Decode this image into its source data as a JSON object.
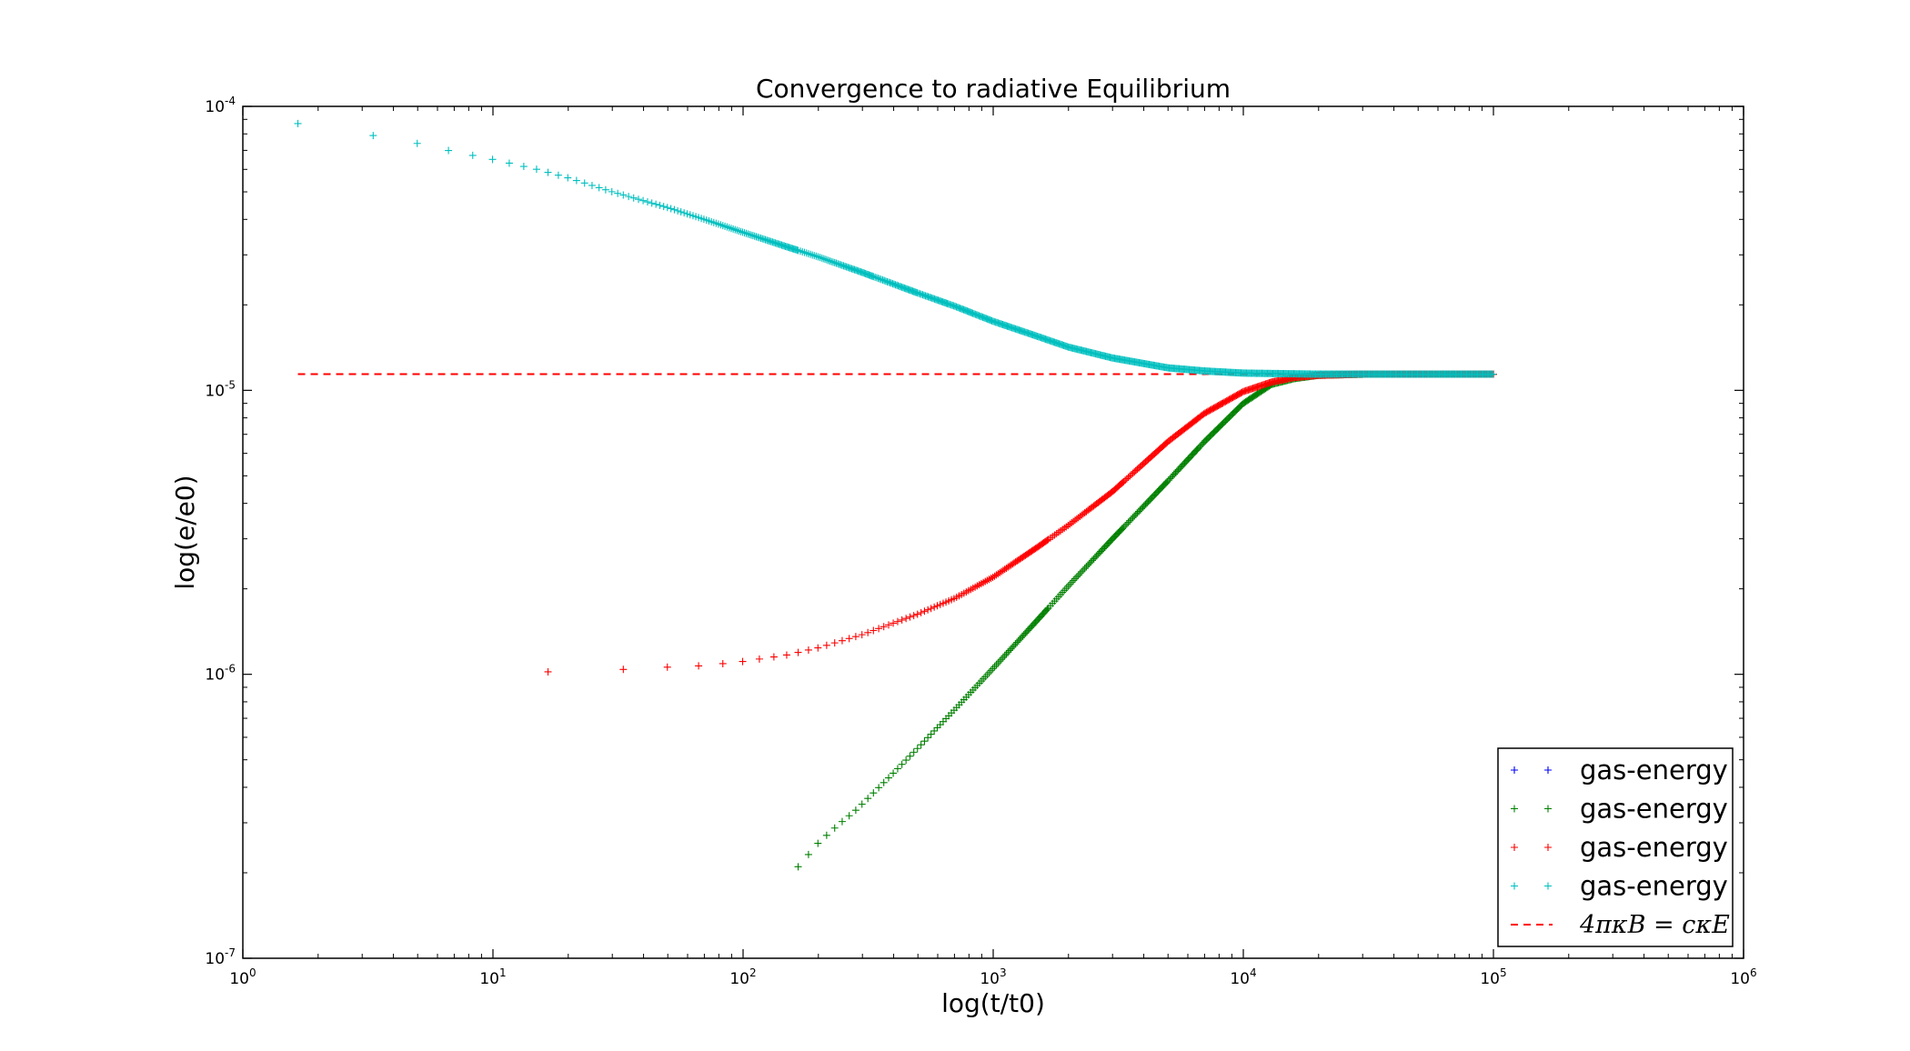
{
  "chart_data": {
    "type": "scatter",
    "title": "Convergence to radiative Equilibrium",
    "xlabel": "log(t/t0)",
    "ylabel": "log(e/e0)",
    "xscale": "log",
    "yscale": "log",
    "xlim": [
      1,
      1000000
    ],
    "ylim": [
      1e-07,
      0.0001
    ],
    "x_ticks": [
      {
        "base": "10",
        "exp": "0",
        "value": 1
      },
      {
        "base": "10",
        "exp": "1",
        "value": 10
      },
      {
        "base": "10",
        "exp": "2",
        "value": 100
      },
      {
        "base": "10",
        "exp": "3",
        "value": 1000
      },
      {
        "base": "10",
        "exp": "4",
        "value": 10000
      },
      {
        "base": "10",
        "exp": "5",
        "value": 100000
      },
      {
        "base": "10",
        "exp": "6",
        "value": 1000000
      }
    ],
    "y_ticks": [
      {
        "base": "10",
        "exp": "-4",
        "value": 0.0001
      },
      {
        "base": "10",
        "exp": "-5",
        "value": 1e-05
      },
      {
        "base": "10",
        "exp": "-6",
        "value": 1e-06
      },
      {
        "base": "10",
        "exp": "-7",
        "value": 1e-07
      }
    ],
    "grid": false,
    "legend_position": "lower-right",
    "series": [
      {
        "name": "gas-energy",
        "color": "#0000ff",
        "marker": "+",
        "points": []
      },
      {
        "name": "gas-energy",
        "color": "#008000",
        "marker": "+",
        "points": [
          [
            166,
            2.1e-07
          ],
          [
            200,
            2.55e-07
          ],
          [
            240,
            2.95e-07
          ],
          [
            280,
            3.3e-07
          ],
          [
            320,
            3.7e-07
          ],
          [
            400,
            4.5e-07
          ],
          [
            500,
            5.5e-07
          ],
          [
            700,
            7.5e-07
          ],
          [
            1000,
            1.05e-06
          ],
          [
            1500,
            1.55e-06
          ],
          [
            2000,
            2.05e-06
          ],
          [
            3000,
            3e-06
          ],
          [
            5000,
            4.8e-06
          ],
          [
            7000,
            6.6e-06
          ],
          [
            10000,
            9e-06
          ],
          [
            13000,
            1.05e-05
          ],
          [
            16000,
            1.1e-05
          ],
          [
            20000,
            1.13e-05
          ],
          [
            30000,
            1.14e-05
          ],
          [
            50000,
            1.14e-05
          ],
          [
            100000,
            1.14e-05
          ]
        ]
      },
      {
        "name": "gas-energy",
        "color": "#ff0000",
        "marker": "+",
        "points": [
          [
            16.6,
            1.02e-06
          ],
          [
            33,
            1.04e-06
          ],
          [
            50,
            1.06e-06
          ],
          [
            66,
            1.07e-06
          ],
          [
            83,
            1.09e-06
          ],
          [
            100,
            1.11e-06
          ],
          [
            150,
            1.17e-06
          ],
          [
            200,
            1.24e-06
          ],
          [
            300,
            1.38e-06
          ],
          [
            500,
            1.63e-06
          ],
          [
            700,
            1.85e-06
          ],
          [
            1000,
            2.2e-06
          ],
          [
            1500,
            2.8e-06
          ],
          [
            2000,
            3.35e-06
          ],
          [
            3000,
            4.4e-06
          ],
          [
            5000,
            6.6e-06
          ],
          [
            7000,
            8.3e-06
          ],
          [
            10000,
            9.9e-06
          ],
          [
            13000,
            1.07e-05
          ],
          [
            16000,
            1.11e-05
          ],
          [
            20000,
            1.13e-05
          ],
          [
            30000,
            1.14e-05
          ],
          [
            50000,
            1.14e-05
          ],
          [
            100000,
            1.14e-05
          ]
        ]
      },
      {
        "name": "gas-energy",
        "color": "#00bfbf",
        "marker": "+",
        "points": [
          [
            1.66,
            8.7e-05
          ],
          [
            3.3,
            7.9e-05
          ],
          [
            5,
            7.4e-05
          ],
          [
            6.6,
            7e-05
          ],
          [
            10,
            6.5e-05
          ],
          [
            15,
            6e-05
          ],
          [
            20,
            5.6e-05
          ],
          [
            30,
            5e-05
          ],
          [
            50,
            4.4e-05
          ],
          [
            70,
            4e-05
          ],
          [
            100,
            3.6e-05
          ],
          [
            150,
            3.2e-05
          ],
          [
            200,
            2.95e-05
          ],
          [
            300,
            2.6e-05
          ],
          [
            500,
            2.2e-05
          ],
          [
            700,
            1.98e-05
          ],
          [
            1000,
            1.75e-05
          ],
          [
            1500,
            1.55e-05
          ],
          [
            2000,
            1.42e-05
          ],
          [
            3000,
            1.3e-05
          ],
          [
            5000,
            1.2e-05
          ],
          [
            7000,
            1.17e-05
          ],
          [
            10000,
            1.15e-05
          ],
          [
            20000,
            1.14e-05
          ],
          [
            50000,
            1.14e-05
          ],
          [
            100000,
            1.14e-05
          ]
        ]
      }
    ],
    "reference_line": {
      "label_math": "4πκB = cκE",
      "color": "#ff0000",
      "style": "dashed",
      "y": 1.14e-05,
      "x_range": [
        1.66,
        100000
      ]
    }
  },
  "legend": {
    "entries": [
      {
        "label": "gas-energy",
        "color": "#0000ff",
        "marker": "+"
      },
      {
        "label": "gas-energy",
        "color": "#008000",
        "marker": "+"
      },
      {
        "label": "gas-energy",
        "color": "#ff0000",
        "marker": "+"
      },
      {
        "label": "gas-energy",
        "color": "#00bfbf",
        "marker": "+"
      }
    ],
    "line_entry_color": "#ff0000"
  }
}
